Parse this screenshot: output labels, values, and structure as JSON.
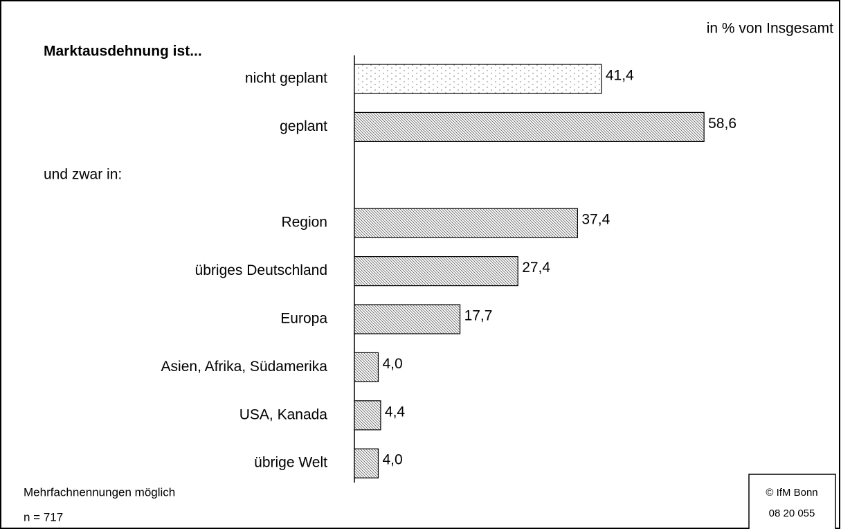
{
  "chart_data": {
    "type": "hbar",
    "title": "Marktausdehnung ist...",
    "unit_note": "in % von Insgesamt",
    "categories": [
      "nicht geplant",
      "geplant",
      "und zwar in:",
      "Region",
      "übriges Deutschland",
      "Europa",
      "Asien, Afrika, Südamerika",
      "USA, Kanada",
      "übrige Welt"
    ],
    "values": [
      41.4,
      58.6,
      null,
      37.4,
      27.4,
      17.7,
      4.0,
      4.4,
      4.0
    ],
    "value_labels": [
      "41,4",
      "58,6",
      null,
      "37,4",
      "27,4",
      "17,7",
      "4,0",
      "4,4",
      "4,0"
    ],
    "patterns": [
      "dots",
      "hatch",
      null,
      "hatch",
      "hatch",
      "hatch",
      "hatch",
      "hatch",
      "hatch"
    ],
    "footnotes": [
      "Mehrfachnennungen möglich",
      "n = 717"
    ],
    "source": [
      "© IfM Bonn",
      "08 20 055"
    ]
  }
}
